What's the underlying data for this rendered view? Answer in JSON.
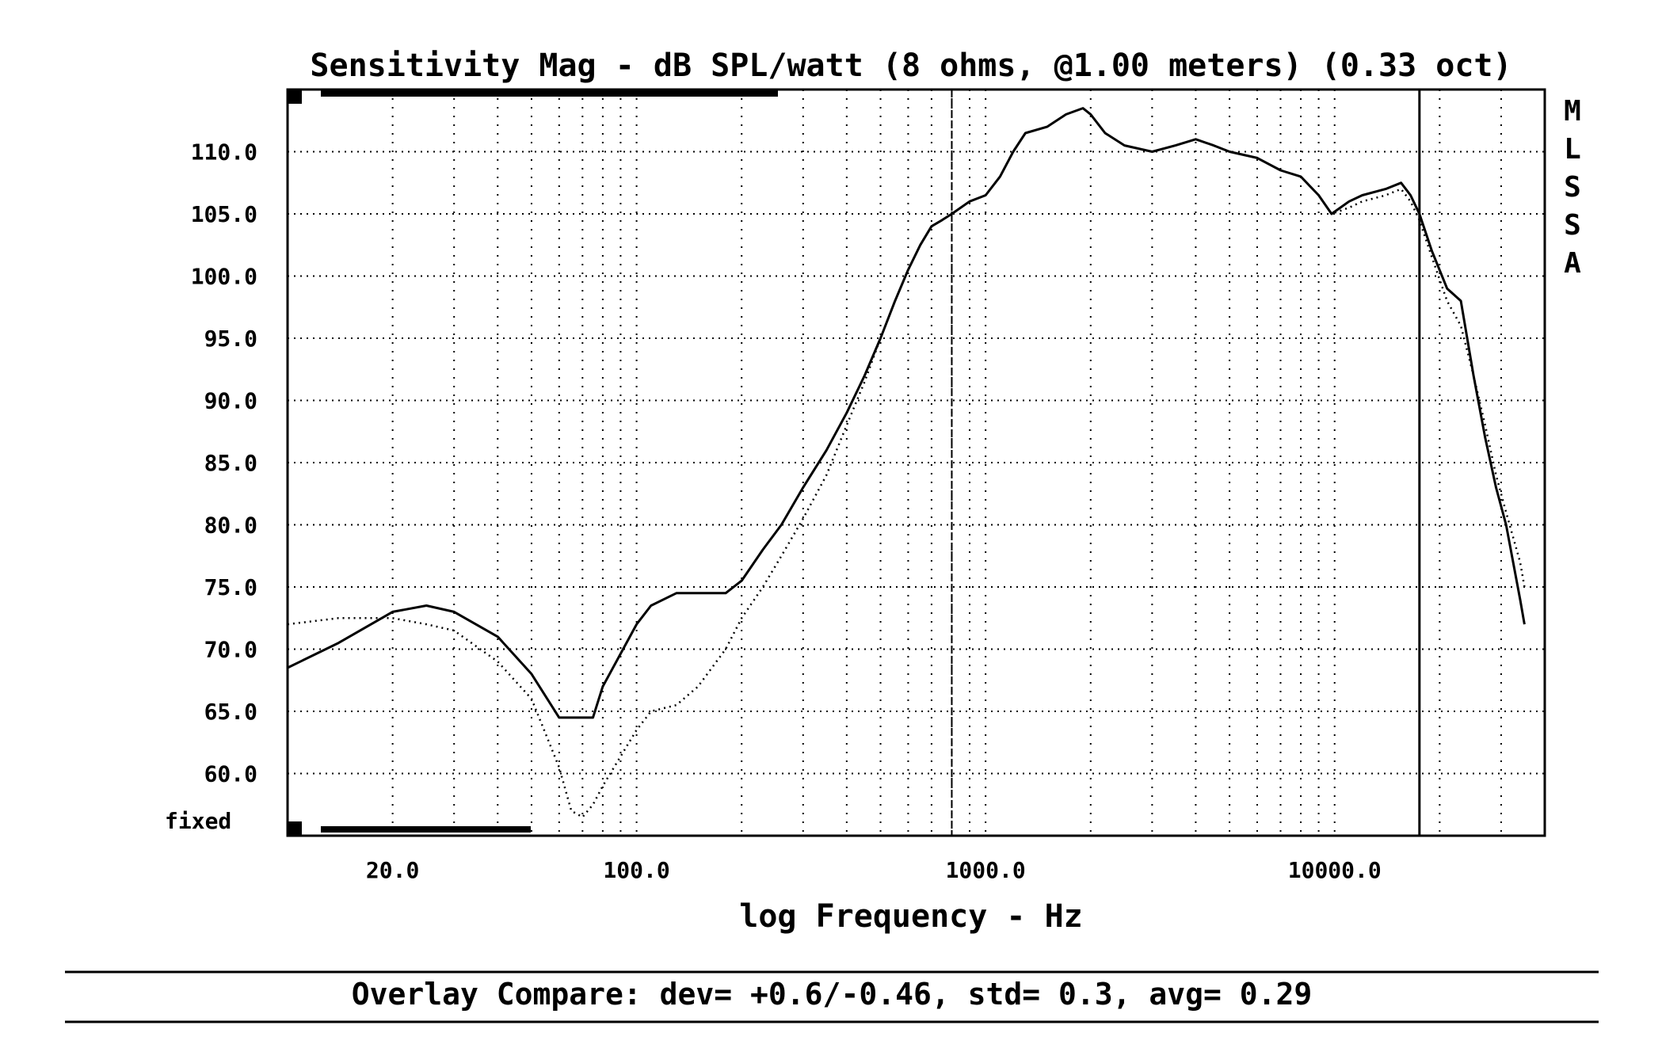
{
  "chart_data": {
    "type": "line",
    "title": "Sensitivity Mag - dB SPL/watt (8 ohms, @1.00 meters) (0.33 oct)",
    "xlabel": "log Frequency - Hz",
    "ylabel": "",
    "x_scale": "log",
    "xlim": [
      10,
      40000
    ],
    "ylim": [
      55,
      115
    ],
    "grid": true,
    "yticks": [
      {
        "value": 60,
        "label": "60.0"
      },
      {
        "value": 65,
        "label": "65.0"
      },
      {
        "value": 70,
        "label": "70.0"
      },
      {
        "value": 75,
        "label": "75.0"
      },
      {
        "value": 80,
        "label": "80.0"
      },
      {
        "value": 85,
        "label": "85.0"
      },
      {
        "value": 90,
        "label": "90.0"
      },
      {
        "value": 95,
        "label": "95.0"
      },
      {
        "value": 100,
        "label": "100.0"
      },
      {
        "value": 105,
        "label": "105.0"
      },
      {
        "value": 110,
        "label": "110.0"
      }
    ],
    "xticks": [
      {
        "value": 20,
        "label": "20.0"
      },
      {
        "value": 100,
        "label": "100.0"
      },
      {
        "value": 1000,
        "label": "1000.0"
      },
      {
        "value": 10000,
        "label": "10000.0"
      }
    ],
    "scale_mode_label": "fixed",
    "side_label": [
      "M",
      "L",
      "S",
      "S",
      "A"
    ],
    "cursors_hz": [
      800,
      17500
    ],
    "series": [
      {
        "style": "solid",
        "x": [
          10,
          14,
          20,
          25,
          30,
          40,
          50,
          60,
          65,
          75,
          80,
          100,
          110,
          130,
          150,
          180,
          200,
          230,
          260,
          300,
          350,
          400,
          450,
          500,
          550,
          600,
          650,
          700,
          750,
          800,
          900,
          1000,
          1100,
          1200,
          1300,
          1500,
          1700,
          1900,
          2000,
          2200,
          2500,
          3000,
          3500,
          4000,
          4500,
          5000,
          6000,
          7000,
          8000,
          9000,
          9800,
          11000,
          12000,
          14000,
          15500,
          16500,
          17500,
          19000,
          21000,
          23000,
          25000,
          27000,
          29000,
          31000,
          34000,
          35000
        ],
        "y": [
          68.5,
          70.5,
          73.0,
          73.5,
          73.0,
          71.0,
          68.0,
          64.5,
          64.5,
          64.5,
          67.0,
          72.0,
          73.5,
          74.5,
          74.5,
          74.5,
          75.5,
          78.0,
          80.0,
          83.0,
          86.0,
          89.0,
          92.0,
          95.0,
          98.0,
          100.5,
          102.5,
          104.0,
          104.5,
          105.0,
          106.0,
          106.5,
          108.0,
          110.0,
          111.5,
          112.0,
          113.0,
          113.5,
          113.0,
          111.5,
          110.5,
          110.0,
          110.5,
          111.0,
          110.5,
          110.0,
          109.5,
          108.5,
          108.0,
          106.5,
          105.0,
          106.0,
          106.5,
          107.0,
          107.5,
          106.5,
          105.0,
          102.0,
          99.0,
          98.0,
          92.0,
          87.0,
          83.0,
          80.0,
          74.0,
          72.0
        ]
      },
      {
        "style": "dotted",
        "x": [
          10,
          14,
          20,
          25,
          30,
          40,
          50,
          60,
          65,
          70,
          75,
          80,
          100,
          110,
          130,
          150,
          180,
          200,
          230,
          260,
          300,
          350,
          400,
          450,
          500,
          550,
          600,
          650,
          700,
          750,
          800,
          900,
          1000,
          1100,
          1200,
          1300,
          1500,
          1700,
          1900,
          2000,
          2200,
          2500,
          3000,
          3500,
          4000,
          4500,
          5000,
          6000,
          7000,
          8000,
          9000,
          9800,
          11000,
          12000,
          14000,
          15500,
          16500,
          17500,
          19000,
          21000,
          23000,
          25000,
          27000,
          29000,
          31000,
          34000,
          35000
        ],
        "y": [
          72.0,
          72.5,
          72.5,
          72.0,
          71.5,
          69.0,
          66.0,
          60.5,
          57.0,
          56.5,
          57.5,
          59.0,
          63.5,
          65.0,
          65.5,
          67.0,
          70.0,
          72.5,
          75.0,
          77.5,
          80.5,
          84.0,
          88.0,
          91.5,
          95.0,
          98.0,
          100.5,
          102.5,
          104.0,
          104.5,
          105.0,
          106.0,
          106.5,
          108.0,
          110.0,
          111.5,
          112.0,
          113.0,
          113.5,
          113.0,
          111.5,
          110.5,
          110.0,
          110.5,
          111.0,
          110.5,
          110.0,
          109.5,
          108.5,
          108.0,
          106.5,
          105.0,
          105.5,
          106.0,
          106.5,
          107.0,
          106.0,
          104.5,
          101.5,
          98.0,
          96.0,
          92.0,
          88.0,
          84.0,
          81.0,
          77.0,
          75.0
        ]
      }
    ]
  },
  "footer": {
    "text": "Overlay Compare: dev= +0.6/-0.46, std= 0.3, avg= 0.29"
  }
}
